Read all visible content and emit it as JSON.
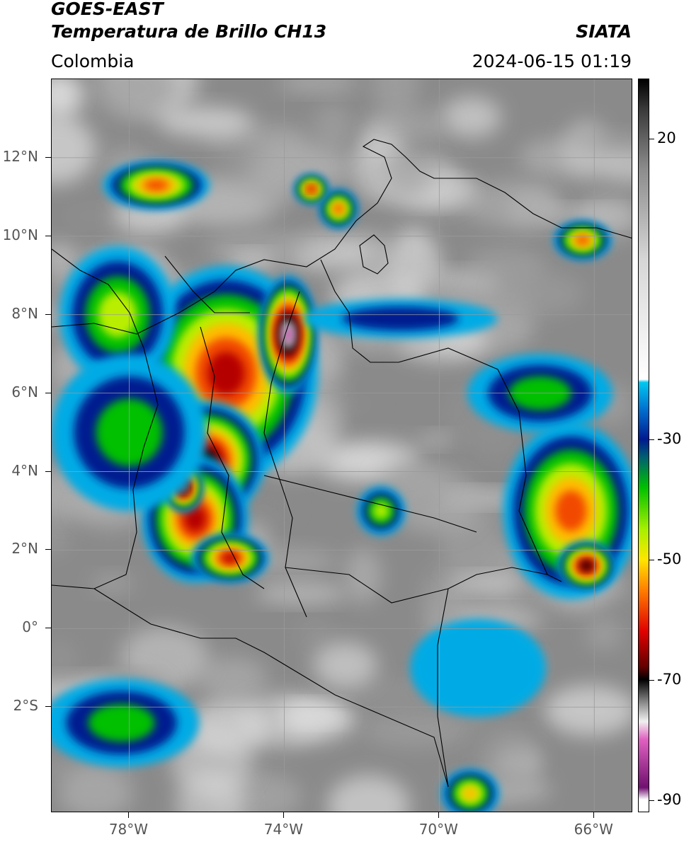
{
  "header": {
    "title_line1": "GOES-EAST",
    "title_line2": "Temperatura de Brillo CH13",
    "subtitle": "Colombia",
    "organization": "SIATA",
    "datetime": "2024-06-15 01:19"
  },
  "map": {
    "extent": {
      "lon_min": -80.0,
      "lon_max": -65.0,
      "lat_min": -4.7,
      "lat_max": 14.0
    },
    "lat_ticks": [
      {
        "lat": 12,
        "label": "12°N"
      },
      {
        "lat": 10,
        "label": "10°N"
      },
      {
        "lat": 8,
        "label": "8°N"
      },
      {
        "lat": 6,
        "label": "6°N"
      },
      {
        "lat": 4,
        "label": "4°N"
      },
      {
        "lat": 2,
        "label": "2°N"
      },
      {
        "lat": 0,
        "label": "0°"
      },
      {
        "lat": -2,
        "label": "2°S"
      }
    ],
    "lon_ticks": [
      {
        "lon": -78,
        "label": "78°W"
      },
      {
        "lon": -74,
        "label": "74°W"
      },
      {
        "lon": -70,
        "label": "70°W"
      },
      {
        "lon": -66,
        "label": "66°W"
      }
    ],
    "gridlines": true,
    "background_color": "#8a8a8a",
    "border_color": "#000000"
  },
  "colorbar": {
    "min": -92,
    "max": 30,
    "ticks": [
      {
        "value": 20,
        "label": "20"
      },
      {
        "value": -30,
        "label": "-30"
      },
      {
        "value": -50,
        "label": "-50"
      },
      {
        "value": -70,
        "label": "-70"
      },
      {
        "value": -90,
        "label": "-90"
      }
    ],
    "stops": [
      {
        "value": 30,
        "color": "#000000"
      },
      {
        "value": 25,
        "color": "#3a3a3a"
      },
      {
        "value": 15,
        "color": "#8c8c8c"
      },
      {
        "value": 0,
        "color": "#d6d6d6"
      },
      {
        "value": -20,
        "color": "#ffffff"
      },
      {
        "value": -20.5,
        "color": "#00c8f0"
      },
      {
        "value": -25,
        "color": "#0070d0"
      },
      {
        "value": -30,
        "color": "#001a90"
      },
      {
        "value": -33,
        "color": "#006070"
      },
      {
        "value": -38,
        "color": "#00c000"
      },
      {
        "value": -45,
        "color": "#a8f000"
      },
      {
        "value": -50,
        "color": "#ffe600"
      },
      {
        "value": -55,
        "color": "#ff8000"
      },
      {
        "value": -62,
        "color": "#e00000"
      },
      {
        "value": -68,
        "color": "#600000"
      },
      {
        "value": -70,
        "color": "#000000"
      },
      {
        "value": -74,
        "color": "#909090"
      },
      {
        "value": -77,
        "color": "#f0f0f0"
      },
      {
        "value": -80,
        "color": "#e060c0"
      },
      {
        "value": -88,
        "color": "#701070"
      },
      {
        "value": -90,
        "color": "#ffffff"
      }
    ]
  },
  "cloud_cells": [
    {
      "lon": -75.5,
      "lat": 6.5,
      "rx": 1.9,
      "ry": 2.2,
      "temp": -66
    },
    {
      "lon": -76.0,
      "lat": 4.3,
      "rx": 1.2,
      "ry": 1.2,
      "temp": -70
    },
    {
      "lon": -76.3,
      "lat": 2.8,
      "rx": 1.1,
      "ry": 1.3,
      "temp": -68
    },
    {
      "lon": -73.9,
      "lat": 7.5,
      "rx": 0.6,
      "ry": 1.2,
      "temp": -82
    },
    {
      "lon": -76.6,
      "lat": 3.6,
      "rx": 0.4,
      "ry": 0.5,
      "temp": -78
    },
    {
      "lon": -75.4,
      "lat": 1.8,
      "rx": 0.8,
      "ry": 0.5,
      "temp": -66
    },
    {
      "lon": -78.3,
      "lat": 8.0,
      "rx": 1.2,
      "ry": 1.4,
      "temp": -48
    },
    {
      "lon": -78.0,
      "lat": 5.0,
      "rx": 1.6,
      "ry": 1.6,
      "temp": -40
    },
    {
      "lon": -66.6,
      "lat": 3.0,
      "rx": 1.4,
      "ry": 1.8,
      "temp": -58
    },
    {
      "lon": -66.2,
      "lat": 1.6,
      "rx": 0.6,
      "ry": 0.5,
      "temp": -70
    },
    {
      "lon": -78.2,
      "lat": -2.4,
      "rx": 1.6,
      "ry": 0.9,
      "temp": -44
    },
    {
      "lon": -77.3,
      "lat": 11.3,
      "rx": 1.1,
      "ry": 0.5,
      "temp": -60
    },
    {
      "lon": -66.3,
      "lat": 9.9,
      "rx": 0.6,
      "ry": 0.4,
      "temp": -58
    },
    {
      "lon": -67.4,
      "lat": 6.0,
      "rx": 1.5,
      "ry": 0.8,
      "temp": -38
    },
    {
      "lon": -69.2,
      "lat": -4.2,
      "rx": 0.6,
      "ry": 0.5,
      "temp": -56
    },
    {
      "lon": -72.6,
      "lat": 10.7,
      "rx": 0.4,
      "ry": 0.4,
      "temp": -62
    },
    {
      "lon": -73.3,
      "lat": 11.2,
      "rx": 0.35,
      "ry": 0.3,
      "temp": -64
    },
    {
      "lon": -71.5,
      "lat": 3.0,
      "rx": 0.5,
      "ry": 0.5,
      "temp": -48
    },
    {
      "lon": -71.0,
      "lat": 7.9,
      "rx": 2.0,
      "ry": 0.4,
      "temp": -35
    },
    {
      "lon": -69.0,
      "lat": -1.0,
      "rx": 1.4,
      "ry": 1.0,
      "temp": -28
    }
  ]
}
